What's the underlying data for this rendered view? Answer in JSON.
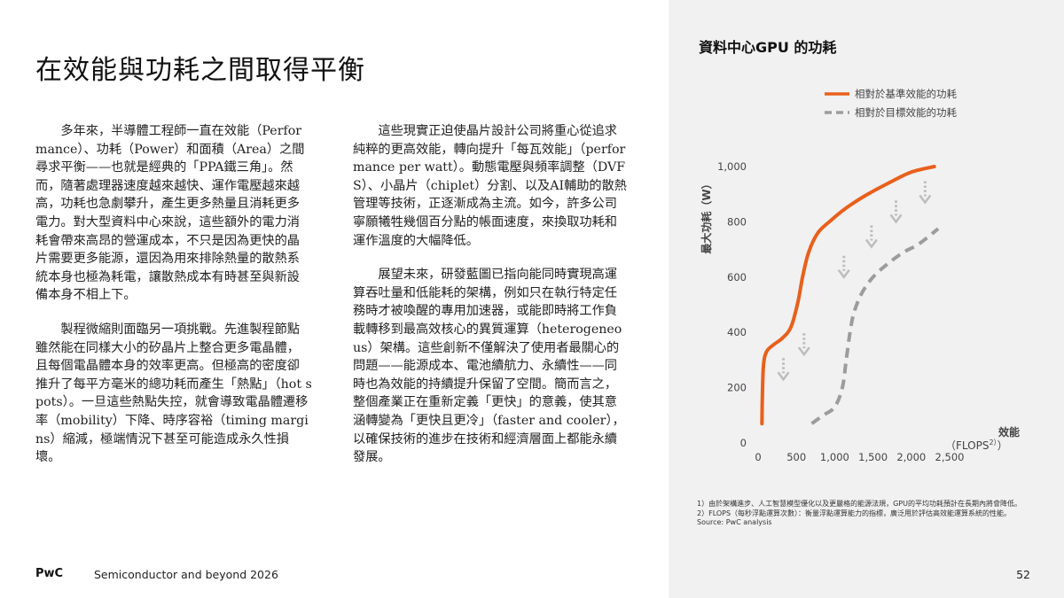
{
  "page": {
    "title": "在效能與功耗之間取得平衡",
    "left_column": [
      "多年來，半導體工程師一直在效能（Performance）、功耗（Power）和面積（Area）之間尋求平衡——也就是經典的「PPA鐵三角」。然而，隨著處理器速度越來越快、運作電壓越來越高，功耗也急劇攀升，產生更多熱量且消耗更多電力。對大型資料中心來說，這些額外的電力消耗會帶來高昂的營運成本，不只是因為更快的晶片需要更多能源，還因為用來排除熱量的散熱系統本身也極為耗電，讓散熱成本有時甚至與新設備本身不相上下。",
      "製程微縮則面臨另一項挑戰。先進製程節點雖然能在同樣大小的矽晶片上整合更多電晶體，且每個電晶體本身的效率更高。但極高的密度卻推升了每平方毫米的總功耗而產生「熱點」（hot spots）。一旦這些熱點失控，就會導致電晶體遷移率（mobility）下降、時序容裕（timing margins）縮減，極端情況下甚至可能造成永久性損壞。"
    ],
    "right_column": [
      "這些現實正迫使晶片設計公司將重心從追求純粹的更高效能，轉向提升「每瓦效能」（performance per watt）。動態電壓與頻率調整（DVFS）、小晶片（chiplet）分割、以及AI輔助的散熱管理等技術，正逐漸成為主流。如今，許多公司寧願犧牲幾個百分點的帳面速度，來換取功耗和運作溫度的大幅降低。",
      "展望未來，研發藍圖已指向能同時實現高運算吞吐量和低能耗的架構，例如只在執行特定任務時才被喚醒的專用加速器，或能即時將工作負載轉移到最高效核心的異質運算（heterogeneous）架構。這些創新不僅解決了使用者最關心的問題——能源成本、電池續航力、永續性——同時也為效能的持續提升保留了空間。簡而言之，整個產業正在重新定義「更快」的意義，使其意涵轉變為「更快且更冷」（faster and cooler），以確保技術的進步在技術和經濟層面上都能永續發展。"
    ]
  },
  "chart_data": {
    "type": "line",
    "title": "資料中心GPU 的功耗",
    "ylabel": "最大功耗（W）",
    "xlabel_line1": "效能",
    "xlabel_line2": "（FLOPS",
    "xlabel_sup": "2）",
    "xlabel_close": "）",
    "xlim": [
      0,
      2500
    ],
    "ylim": [
      0,
      1000
    ],
    "x_ticks": [
      0,
      500,
      1000,
      1500,
      2000,
      2500
    ],
    "x_tick_labels": [
      "0",
      "500",
      "1,000",
      "1,500",
      "2,000",
      "2,500"
    ],
    "y_ticks": [
      0,
      200,
      400,
      600,
      800,
      1000
    ],
    "y_tick_labels": [
      "0",
      "200",
      "400",
      "600",
      "800",
      "1,000"
    ],
    "series": [
      {
        "name": "相對於基準效能的功耗",
        "style": "solid",
        "color": "#e8601c",
        "x": [
          50,
          55,
          70,
          110,
          200,
          320,
          430,
          520,
          580,
          660,
          780,
          950,
          1150,
          1400,
          1700,
          2000,
          2300
        ],
        "y": [
          70,
          160,
          280,
          330,
          355,
          380,
          420,
          510,
          600,
          690,
          760,
          805,
          850,
          895,
          940,
          980,
          1000
        ]
      },
      {
        "name": "相對於目標效能的功耗",
        "style": "dashed",
        "color": "#9c9c9c",
        "x": [
          700,
          850,
          1000,
          1100,
          1150,
          1200,
          1250,
          1350,
          1500,
          1700,
          1900,
          2100,
          2350
        ],
        "y": [
          70,
          100,
          130,
          200,
          300,
          400,
          470,
          540,
          600,
          650,
          690,
          720,
          775
        ]
      }
    ],
    "shift_arrows": [
      {
        "x": 330,
        "y": 230
      },
      {
        "x": 600,
        "y": 320
      },
      {
        "x": 1120,
        "y": 600
      },
      {
        "x": 1480,
        "y": 710
      },
      {
        "x": 1800,
        "y": 800
      },
      {
        "x": 2180,
        "y": 870
      }
    ]
  },
  "notes": [
    "1）由於架構進步、人工智慧模型優化以及更嚴格的能源法規，GPU的平均功耗預計在長期內將會降低。",
    "2）FLOPS（每秒浮點運算次數）：衡量浮點運算能力的指標，廣泛用於評估高效能運算系統的性能。",
    "Source: PwC analysis"
  ],
  "footer": {
    "brand": "PwC",
    "doc_title": "Semiconductor and beyond 2026",
    "page_number": "52"
  },
  "colors": {
    "panel_bg": "#f1f1f1",
    "accent_orange": "#e8601c",
    "dashed_gray": "#9c9c9c",
    "arrow_gray": "#bdbdbd"
  }
}
